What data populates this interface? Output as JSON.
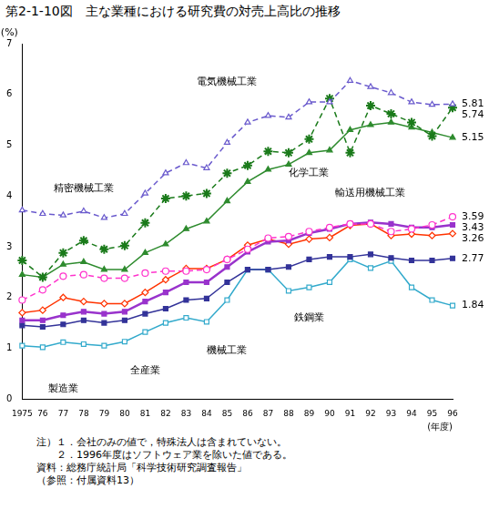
{
  "chart_data": {
    "type": "line",
    "title": "第2-1-10図　主な業種における研究費の対売上高比の推移",
    "x_label": "(年度)",
    "y_label": "(%)",
    "categories": [
      "1975",
      "76",
      "77",
      "78",
      "79",
      "80",
      "81",
      "82",
      "83",
      "84",
      "85",
      "86",
      "87",
      "88",
      "89",
      "90",
      "91",
      "92",
      "93",
      "94",
      "95",
      "96"
    ],
    "ylim": [
      0,
      7
    ],
    "yticks": [
      0,
      1,
      2,
      3,
      4,
      5,
      6,
      7
    ],
    "grid": false,
    "series": [
      {
        "name": "電気機械工業",
        "color": "#6a5acd",
        "line_style": "dashed",
        "marker": "triangle-open",
        "values": [
          3.72,
          3.65,
          3.62,
          3.7,
          3.57,
          3.65,
          4.05,
          4.45,
          4.65,
          4.55,
          5.05,
          5.45,
          5.58,
          5.55,
          5.85,
          5.85,
          6.27,
          6.15,
          6.03,
          5.85,
          5.8,
          5.81
        ]
      },
      {
        "name": "精密機械工業",
        "color": "#1a7a1a",
        "line_style": "dashed",
        "marker": "star",
        "values": [
          2.73,
          2.4,
          2.88,
          3.12,
          2.95,
          3.02,
          3.47,
          3.95,
          4.0,
          4.05,
          4.45,
          4.6,
          4.88,
          4.85,
          5.12,
          5.92,
          4.85,
          5.78,
          5.62,
          5.45,
          5.18,
          5.74
        ]
      },
      {
        "name": "化学工業",
        "color": "#2e8b2e",
        "line_style": "solid",
        "marker": "triangle",
        "values": [
          2.45,
          2.4,
          2.65,
          2.7,
          2.55,
          2.55,
          2.88,
          3.05,
          3.35,
          3.5,
          3.9,
          4.28,
          4.52,
          4.62,
          4.85,
          4.9,
          5.3,
          5.4,
          5.45,
          5.35,
          5.25,
          5.15
        ]
      },
      {
        "name": "輸送用機械工業",
        "color": "#ff33cc",
        "line_style": "dashed",
        "marker": "circle-open",
        "values": [
          1.95,
          2.15,
          2.42,
          2.45,
          2.38,
          2.38,
          2.48,
          2.52,
          2.52,
          2.55,
          2.75,
          2.95,
          3.17,
          3.2,
          3.3,
          3.38,
          3.45,
          3.45,
          3.3,
          3.35,
          3.43,
          3.59
        ]
      },
      {
        "name": "機械工業",
        "color": "#9933cc",
        "line_style": "solid",
        "marker": "square",
        "values": [
          1.55,
          1.55,
          1.65,
          1.72,
          1.68,
          1.72,
          1.92,
          2.1,
          2.3,
          2.3,
          2.6,
          2.9,
          3.1,
          3.12,
          3.27,
          3.35,
          3.45,
          3.48,
          3.45,
          3.38,
          3.38,
          3.43
        ]
      },
      {
        "name": "製造業",
        "color": "#ff3300",
        "line_style": "solid",
        "marker": "diamond-open",
        "values": [
          1.7,
          1.75,
          2.0,
          1.92,
          1.88,
          1.88,
          2.1,
          2.35,
          2.57,
          2.57,
          2.75,
          3.03,
          3.15,
          3.05,
          3.15,
          3.18,
          3.42,
          3.45,
          3.22,
          3.25,
          3.22,
          3.26
        ]
      },
      {
        "name": "全産業",
        "color": "#333399",
        "line_style": "solid",
        "marker": "square",
        "values": [
          1.45,
          1.42,
          1.47,
          1.55,
          1.5,
          1.55,
          1.68,
          1.78,
          1.95,
          1.98,
          2.3,
          2.55,
          2.55,
          2.6,
          2.75,
          2.8,
          2.8,
          2.85,
          2.78,
          2.73,
          2.73,
          2.77
        ]
      },
      {
        "name": "鉄鋼業",
        "color": "#33aacc",
        "line_style": "solid",
        "marker": "square-open",
        "values": [
          1.05,
          1.02,
          1.12,
          1.08,
          1.05,
          1.13,
          1.32,
          1.5,
          1.6,
          1.52,
          1.95,
          2.55,
          2.55,
          2.13,
          2.2,
          2.3,
          2.75,
          2.58,
          2.72,
          2.2,
          1.95,
          1.84
        ]
      }
    ],
    "annotations": [
      {
        "text": "電気機械工業",
        "x": "85",
        "y": 6.25
      },
      {
        "text": "精密機械工業",
        "x": "78",
        "y": 4.15
      },
      {
        "text": "化学工業",
        "x": "89",
        "y": 4.45
      },
      {
        "text": "輸送用機械工業",
        "x": "92",
        "y": 4.05
      },
      {
        "text": "鉄鋼業",
        "x": "89",
        "y": 1.6
      },
      {
        "text": "機械工業",
        "x": "85",
        "y": 0.95
      },
      {
        "text": "全産業",
        "x": "81",
        "y": 0.55
      },
      {
        "text": "製造業",
        "x": "77",
        "y": 0.2
      }
    ],
    "notes": [
      "注）１．会社のみの値で，特殊法人は含まれていない。",
      "　　２．1996年度はソフトウェア業を除いた値である。",
      "資料：総務庁統計局「科学技術研究調査報告」",
      "（参照：付属資料13）"
    ]
  }
}
